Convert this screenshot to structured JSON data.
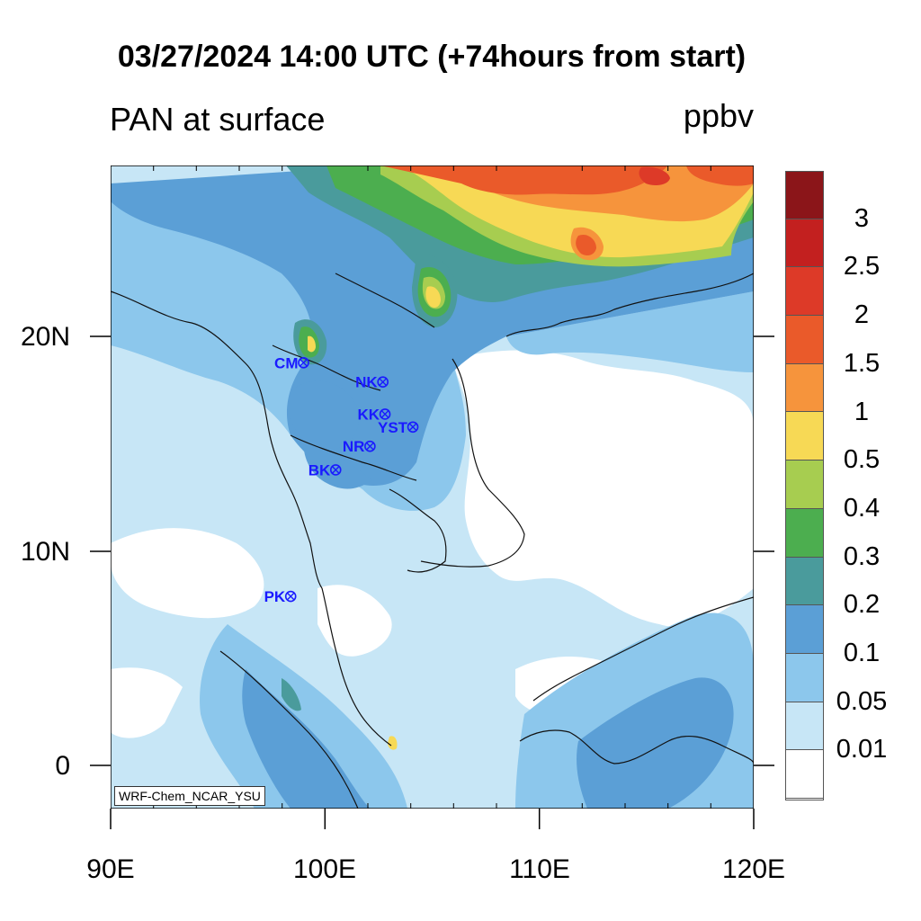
{
  "title": "03/27/2024 14:00 UTC (+74hours from start)",
  "variable_label": "PAN at surface",
  "unit_label": "ppbv",
  "credit": "WRF-Chem_NCAR_YSU",
  "x_ticks": [
    "90E",
    "100E",
    "110E",
    "120E"
  ],
  "y_ticks": [
    "20N",
    "10N",
    "0"
  ],
  "colorbar": {
    "labels": [
      "3",
      "2.5",
      "2",
      "1.5",
      "1",
      "0.5",
      "0.4",
      "0.3",
      "0.2",
      "0.1",
      "0.05",
      "0.01"
    ],
    "colors": [
      "#8b1519",
      "#c3201f",
      "#dd3a28",
      "#ea5a2a",
      "#f6943c",
      "#f7d955",
      "#a7cd50",
      "#4cae4f",
      "#4a9b9c",
      "#5b9fd6",
      "#8cc7ec",
      "#c7e6f6",
      "#ffffff"
    ]
  },
  "stations": [
    {
      "name": "CM",
      "lon": 99.0,
      "lat": 18.8
    },
    {
      "name": "NK",
      "lon": 102.7,
      "lat": 17.9
    },
    {
      "name": "KK",
      "lon": 102.8,
      "lat": 16.4
    },
    {
      "name": "YST",
      "lon": 104.1,
      "lat": 15.8
    },
    {
      "name": "NR",
      "lon": 102.1,
      "lat": 14.9
    },
    {
      "name": "BK",
      "lon": 100.5,
      "lat": 13.8
    },
    {
      "name": "PK",
      "lon": 98.4,
      "lat": 7.9
    }
  ]
}
